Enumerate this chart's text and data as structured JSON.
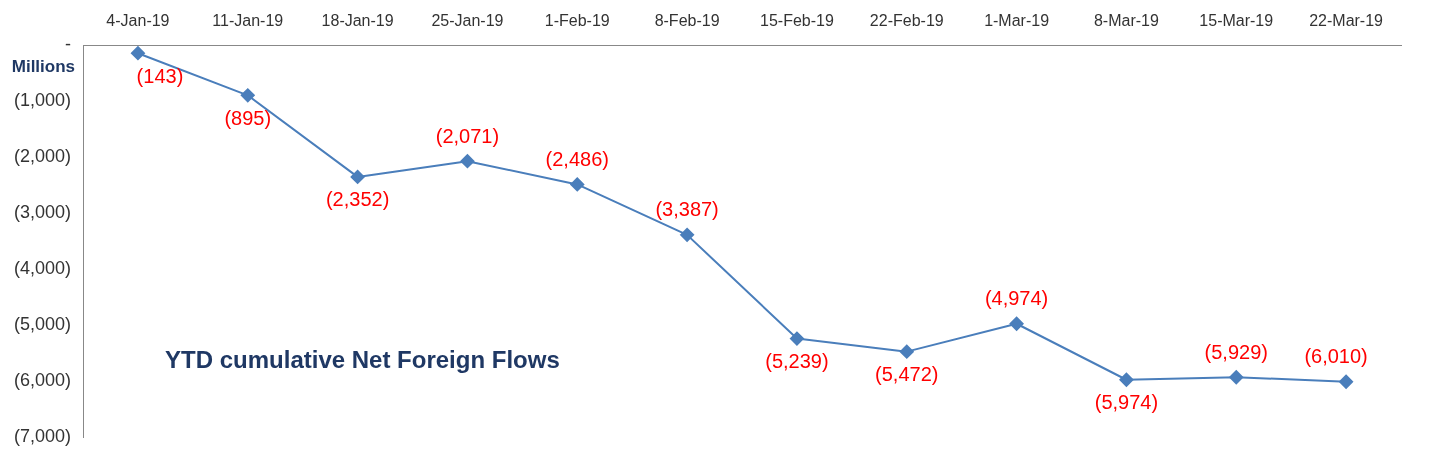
{
  "chart_data": {
    "type": "line",
    "title": "YTD cumulative Net Foreign Flows",
    "ylabel": "Millions",
    "categories": [
      "4-Jan-19",
      "11-Jan-19",
      "18-Jan-19",
      "25-Jan-19",
      "1-Feb-19",
      "8-Feb-19",
      "15-Feb-19",
      "22-Feb-19",
      "1-Mar-19",
      "8-Mar-19",
      "15-Mar-19",
      "22-Mar-19"
    ],
    "series": [
      {
        "color": "#4a7ebb",
        "values": [
          -143,
          -895,
          -2352,
          -2071,
          -2486,
          -3387,
          -5239,
          -5472,
          -4974,
          -5974,
          -5929,
          -6010
        ],
        "value_labels": [
          "(143)",
          "(895)",
          "(2,352)",
          "(2,071)",
          "(2,486)",
          "(3,387)",
          "(5,239)",
          "(5,472)",
          "(4,974)",
          "(5,974)",
          "(5,929)",
          "(6,010)"
        ]
      }
    ],
    "ylim": [
      -7000,
      0
    ],
    "yticks": [
      {
        "value": 0,
        "label": "-"
      },
      {
        "value": -1000,
        "label": "(1,000)"
      },
      {
        "value": -2000,
        "label": "(2,000)"
      },
      {
        "value": -3000,
        "label": "(3,000)"
      },
      {
        "value": -4000,
        "label": "(4,000)"
      },
      {
        "value": -5000,
        "label": "(5,000)"
      },
      {
        "value": -6000,
        "label": "(6,000)"
      },
      {
        "value": -7000,
        "label": "(7,000)"
      }
    ],
    "grid": false,
    "legend": false,
    "marker": "diamond",
    "line_style": "solid"
  }
}
